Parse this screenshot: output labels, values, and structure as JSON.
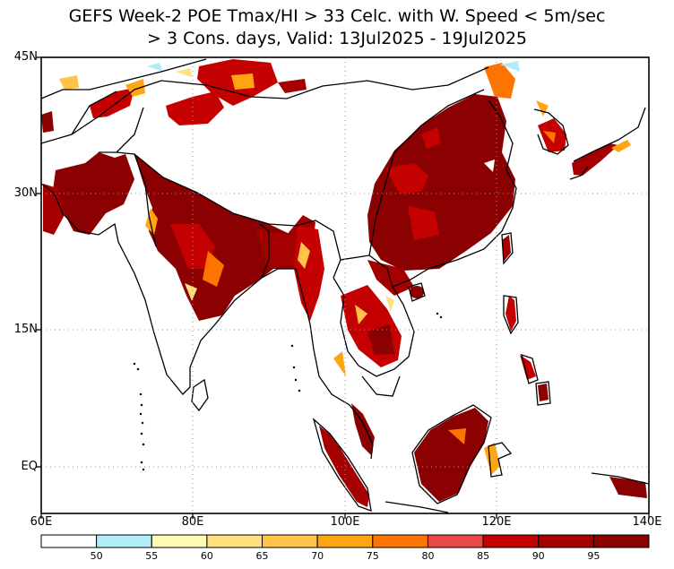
{
  "title": {
    "line1": "GEFS Week-2 POE Tmax/HI > 33 Celc. with W. Speed < 5m/sec",
    "line2": "> 3 Cons. days, Valid: 13Jul2025 - 19Jul2025"
  },
  "map": {
    "region": "South and East Asia",
    "lon_range": [
      60,
      140
    ],
    "lat_range": [
      -3,
      45
    ],
    "lat_labels": [
      "45N",
      "30N",
      "15N",
      "EQ"
    ],
    "lon_labels": [
      "60E",
      "80E",
      "100E",
      "120E",
      "140E"
    ],
    "gridlines": "dotted",
    "high_probability_areas": [
      "Indo-Gangetic Plain (India, Bangladesh)",
      "Pakistan and Afghanistan",
      "Eastern China",
      "Myanmar and Thailand",
      "Malay Peninsula",
      "Borneo",
      "Sumatra",
      "Korea and Japan",
      "Northern Philippines",
      "Taiwan"
    ]
  },
  "colorbar": {
    "labels": [
      "50",
      "55",
      "60",
      "65",
      "70",
      "75",
      "80",
      "85",
      "90",
      "95"
    ],
    "colors": [
      "#ffffff",
      "#b2ecf6",
      "#fffcb3",
      "#ffe07f",
      "#ffc347",
      "#ffa512",
      "#ff7300",
      "#e84848",
      "#c50000",
      "#a40000",
      "#8b0000"
    ]
  }
}
